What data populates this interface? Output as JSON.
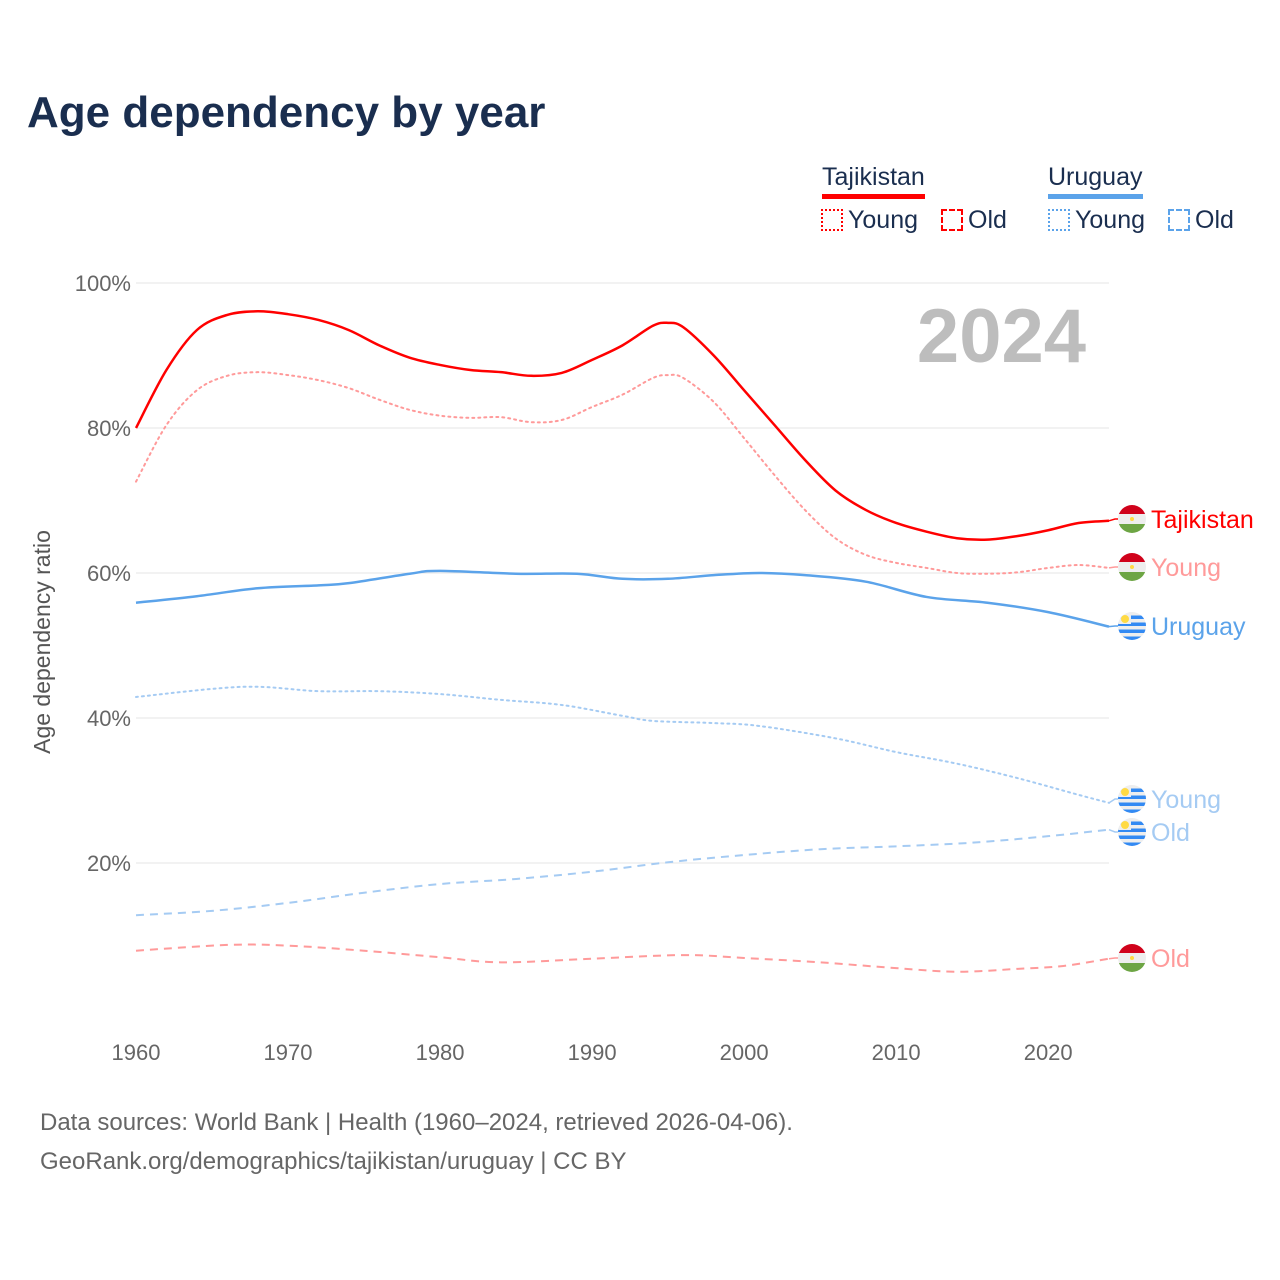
{
  "title": "Age dependency by year",
  "legend": {
    "groups": [
      {
        "country": "Tajikistan",
        "color": "#ff0000",
        "young": "Young",
        "old": "Old"
      },
      {
        "country": "Uruguay",
        "color": "#5ba3ea",
        "young": "Young",
        "old": "Old"
      }
    ]
  },
  "year_badge": "2024",
  "footer": {
    "line1": "Data sources: World Bank | Health (1960–2024, retrieved 2026-04-06).",
    "line2": "GeoRank.org/demographics/tajikistan/uruguay | CC BY"
  },
  "chart_data": {
    "type": "line",
    "title": "Age dependency by year",
    "xlabel": "",
    "ylabel": "Age dependency ratio",
    "xlim": [
      1960,
      2024
    ],
    "ylim": [
      0,
      100
    ],
    "x_ticks": [
      "1960",
      "1970",
      "1980",
      "1990",
      "2000",
      "2010",
      "2020"
    ],
    "y_ticks": [
      "20%",
      "40%",
      "60%",
      "80%",
      "100%"
    ],
    "grid": true,
    "series": [
      {
        "name": "Tajikistan",
        "end_label": "Tajikistan",
        "flag": "tajikistan",
        "color": "#ff0000",
        "style": "solid",
        "points": [
          [
            1960,
            80
          ],
          [
            1962,
            88
          ],
          [
            1964,
            93.5
          ],
          [
            1966,
            95.6
          ],
          [
            1968,
            96.1
          ],
          [
            1970,
            95.7
          ],
          [
            1972,
            94.9
          ],
          [
            1974,
            93.5
          ],
          [
            1976,
            91.4
          ],
          [
            1978,
            89.7
          ],
          [
            1980,
            88.7
          ],
          [
            1982,
            88
          ],
          [
            1984,
            87.7
          ],
          [
            1986,
            87.2
          ],
          [
            1988,
            87.6
          ],
          [
            1990,
            89.4
          ],
          [
            1992,
            91.4
          ],
          [
            1994,
            94.1
          ],
          [
            1995,
            94.5
          ],
          [
            1996,
            93.9
          ],
          [
            1998,
            90
          ],
          [
            2000,
            85.2
          ],
          [
            2002,
            80.4
          ],
          [
            2004,
            75.6
          ],
          [
            2006,
            71.4
          ],
          [
            2008,
            68.7
          ],
          [
            2010,
            66.9
          ],
          [
            2012,
            65.7
          ],
          [
            2014,
            64.8
          ],
          [
            2016,
            64.6
          ],
          [
            2018,
            65.1
          ],
          [
            2020,
            65.9
          ],
          [
            2022,
            66.9
          ],
          [
            2024,
            67.2
          ]
        ]
      },
      {
        "name": "Tajikistan Young",
        "end_label": "Young",
        "flag": "tajikistan",
        "color": "#ff9a9a",
        "style": "dotted",
        "points": [
          [
            1960,
            72.6
          ],
          [
            1962,
            80.4
          ],
          [
            1964,
            85.2
          ],
          [
            1966,
            87.2
          ],
          [
            1968,
            87.7
          ],
          [
            1970,
            87.3
          ],
          [
            1972,
            86.6
          ],
          [
            1974,
            85.5
          ],
          [
            1976,
            83.9
          ],
          [
            1978,
            82.5
          ],
          [
            1980,
            81.7
          ],
          [
            1982,
            81.4
          ],
          [
            1984,
            81.5
          ],
          [
            1986,
            80.8
          ],
          [
            1988,
            81.1
          ],
          [
            1990,
            82.9
          ],
          [
            1992,
            84.6
          ],
          [
            1994,
            86.9
          ],
          [
            1995,
            87.3
          ],
          [
            1996,
            86.9
          ],
          [
            1998,
            83.6
          ],
          [
            2000,
            78.6
          ],
          [
            2002,
            73.5
          ],
          [
            2004,
            68.7
          ],
          [
            2006,
            64.8
          ],
          [
            2008,
            62.5
          ],
          [
            2010,
            61.4
          ],
          [
            2012,
            60.7
          ],
          [
            2014,
            60
          ],
          [
            2016,
            59.9
          ],
          [
            2018,
            60.1
          ],
          [
            2020,
            60.7
          ],
          [
            2022,
            61.1
          ],
          [
            2024,
            60.7
          ]
        ]
      },
      {
        "name": "Uruguay",
        "end_label": "Uruguay",
        "flag": "uruguay",
        "color": "#5ba3ea",
        "style": "solid",
        "points": [
          [
            1960,
            55.9
          ],
          [
            1964,
            56.8
          ],
          [
            1968,
            57.9
          ],
          [
            1972,
            58.3
          ],
          [
            1974,
            58.6
          ],
          [
            1978,
            59.9
          ],
          [
            1980,
            60.3
          ],
          [
            1985,
            59.9
          ],
          [
            1989,
            59.9
          ],
          [
            1992,
            59.2
          ],
          [
            1995,
            59.2
          ],
          [
            1998,
            59.7
          ],
          [
            2001,
            60
          ],
          [
            2004,
            59.7
          ],
          [
            2008,
            58.8
          ],
          [
            2012,
            56.7
          ],
          [
            2016,
            55.9
          ],
          [
            2020,
            54.6
          ],
          [
            2024,
            52.6
          ]
        ]
      },
      {
        "name": "Uruguay Young",
        "end_label": "Young",
        "flag": "uruguay",
        "color": "#a5cbf3",
        "style": "dotted",
        "points": [
          [
            1960,
            42.9
          ],
          [
            1967,
            44.3
          ],
          [
            1972,
            43.7
          ],
          [
            1976,
            43.7
          ],
          [
            1980,
            43.3
          ],
          [
            1984,
            42.5
          ],
          [
            1988,
            41.8
          ],
          [
            1992,
            40.3
          ],
          [
            1994,
            39.6
          ],
          [
            1998,
            39.3
          ],
          [
            2001,
            38.9
          ],
          [
            2006,
            37.2
          ],
          [
            2010,
            35.3
          ],
          [
            2014,
            33.7
          ],
          [
            2018,
            31.7
          ],
          [
            2022,
            29.4
          ],
          [
            2024,
            28.3
          ]
        ]
      },
      {
        "name": "Uruguay Old",
        "end_label": "Old",
        "flag": "uruguay",
        "color": "#a5cbf3",
        "style": "dashed",
        "points": [
          [
            1960,
            12.8
          ],
          [
            1965,
            13.4
          ],
          [
            1970,
            14.5
          ],
          [
            1975,
            15.9
          ],
          [
            1980,
            17.1
          ],
          [
            1985,
            17.8
          ],
          [
            1990,
            18.8
          ],
          [
            1995,
            20.1
          ],
          [
            2000,
            21.1
          ],
          [
            2005,
            21.9
          ],
          [
            2010,
            22.3
          ],
          [
            2015,
            22.8
          ],
          [
            2020,
            23.7
          ],
          [
            2024,
            24.6
          ]
        ]
      },
      {
        "name": "Tajikistan Old",
        "end_label": "Old",
        "flag": "tajikistan",
        "color": "#ff9a9a",
        "style": "dashed",
        "points": [
          [
            1960,
            7.9
          ],
          [
            1966,
            8.7
          ],
          [
            1970,
            8.6
          ],
          [
            1975,
            7.9
          ],
          [
            1980,
            7
          ],
          [
            1984,
            6.3
          ],
          [
            1990,
            6.8
          ],
          [
            1996,
            7.3
          ],
          [
            2000,
            6.9
          ],
          [
            2005,
            6.3
          ],
          [
            2010,
            5.5
          ],
          [
            2014,
            5.0
          ],
          [
            2018,
            5.4
          ],
          [
            2021,
            5.8
          ],
          [
            2024,
            6.8
          ]
        ]
      }
    ]
  }
}
